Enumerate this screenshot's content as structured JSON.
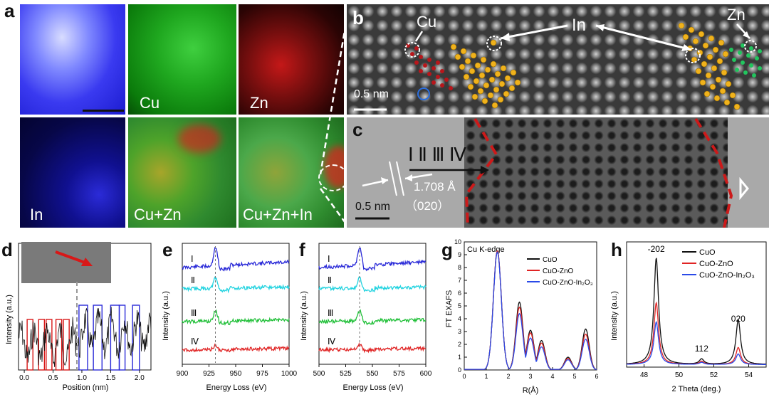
{
  "panel_a": {
    "letter": "a",
    "maps": [
      "",
      "Cu",
      "Zn",
      "In",
      "Cu+Zn",
      "Cu+Zn+In"
    ]
  },
  "panel_b": {
    "letter": "b",
    "labels": {
      "cu": "Cu",
      "in": "In",
      "zn": "Zn"
    },
    "scale": "0.5 nm"
  },
  "panel_c": {
    "letter": "c",
    "roman": "Ⅰ Ⅱ Ⅲ Ⅳ",
    "spacing": "1.708 Å",
    "plane": "（020）",
    "scale": "0.5 nm"
  },
  "panel_d": {
    "letter": "d"
  },
  "panel_e": {
    "letter": "e"
  },
  "panel_f": {
    "letter": "f"
  },
  "panel_g": {
    "letter": "g"
  },
  "panel_h": {
    "letter": "h"
  },
  "chart_data": [
    {
      "id": "d",
      "type": "line",
      "xlabel": "Position (nm)",
      "ylabel": "Intensity (a.u.)",
      "xlim": [
        -0.1,
        2.2
      ],
      "xticks": [
        0.0,
        0.5,
        1.0,
        1.5,
        2.0
      ],
      "xticklabels": [
        "0.0",
        "0.5",
        "1.0",
        "1.5",
        "2.0"
      ],
      "annotations": {
        "red_boxes_nm": [
          [
            0.05,
            0.15
          ],
          [
            0.25,
            0.35
          ],
          [
            0.38,
            0.48
          ],
          [
            0.55,
            0.65
          ],
          [
            0.68,
            0.78
          ]
        ],
        "blue_boxes_nm": [
          [
            0.95,
            1.1
          ],
          [
            1.2,
            1.35
          ],
          [
            1.5,
            1.65
          ],
          [
            1.65,
            1.75
          ],
          [
            1.88,
            2.0
          ]
        ]
      }
    },
    {
      "id": "e",
      "type": "line",
      "xlabel": "Energy Loss (eV)",
      "ylabel": "Intensity (a.u.)",
      "xlim": [
        900,
        1000
      ],
      "xticks": [
        900,
        925,
        950,
        975,
        1000
      ],
      "series_labels": [
        "Ⅰ",
        "Ⅱ",
        "Ⅲ",
        "Ⅳ"
      ],
      "series_colors": [
        "#2a2ad8",
        "#22d3e0",
        "#22c03a",
        "#e02424"
      ],
      "dashed_line_at": 931
    },
    {
      "id": "f",
      "type": "line",
      "xlabel": "Energy Loss (eV)",
      "ylabel": "Intensity (a.u.)",
      "xlim": [
        500,
        600
      ],
      "xticks": [
        500,
        525,
        550,
        575,
        600
      ],
      "series_labels": [
        "Ⅰ",
        "Ⅱ",
        "Ⅲ",
        "Ⅳ"
      ],
      "series_colors": [
        "#2a2ad8",
        "#22d3e0",
        "#22c03a",
        "#e02424"
      ],
      "dashed_line_at": 538
    },
    {
      "id": "g",
      "type": "line",
      "title": "Cu K-edge",
      "xlabel": "R(Å)",
      "ylabel": "FT EXAFS",
      "xlim": [
        0,
        6
      ],
      "ylim": [
        0,
        10
      ],
      "xticks": [
        0,
        1,
        2,
        3,
        4,
        5,
        6
      ],
      "yticks": [
        0,
        1,
        2,
        3,
        4,
        5,
        6,
        7,
        8,
        9,
        10
      ],
      "legend": [
        "CuO",
        "CuO-ZnO",
        "CuO-ZnO-In₂O₃"
      ],
      "legend_position": "top-right",
      "series": [
        {
          "name": "CuO",
          "color": "#111111",
          "peaks": [
            [
              1.5,
              9.3
            ],
            [
              2.5,
              5.3
            ],
            [
              3.0,
              3.1
            ],
            [
              3.5,
              2.3
            ],
            [
              4.7,
              1.0
            ],
            [
              5.5,
              3.2
            ]
          ]
        },
        {
          "name": "CuO-ZnO",
          "color": "#e02424",
          "peaks": [
            [
              1.5,
              9.3
            ],
            [
              2.5,
              4.9
            ],
            [
              3.0,
              2.9
            ],
            [
              3.5,
              2.1
            ],
            [
              4.7,
              0.9
            ],
            [
              5.5,
              2.8
            ]
          ]
        },
        {
          "name": "CuO-ZnO-In₂O₃",
          "color": "#2a4ae8",
          "peaks": [
            [
              1.5,
              9.2
            ],
            [
              2.5,
              4.4
            ],
            [
              3.0,
              2.5
            ],
            [
              3.5,
              1.8
            ],
            [
              4.7,
              0.8
            ],
            [
              5.5,
              2.4
            ]
          ]
        }
      ]
    },
    {
      "id": "h",
      "type": "line",
      "xlabel": "2 Theta (deg.)",
      "ylabel": "Intensity (a.u.)",
      "xlim": [
        47,
        55
      ],
      "xticks": [
        48,
        50,
        52,
        54
      ],
      "legend": [
        "CuO",
        "CuO-ZnO",
        "CuO-ZnO-In₂O₃"
      ],
      "legend_position": "top-right",
      "peak_labels": [
        [
          "-202",
          48.7
        ],
        [
          "112",
          51.3
        ],
        [
          "020",
          53.4
        ]
      ],
      "series": [
        {
          "name": "CuO",
          "color": "#111111",
          "peaks": [
            [
              48.7,
              1.0
            ],
            [
              51.3,
              0.05
            ],
            [
              53.4,
              0.42
            ]
          ]
        },
        {
          "name": "CuO-ZnO",
          "color": "#e02424",
          "peaks": [
            [
              48.7,
              0.58
            ],
            [
              51.3,
              0.03
            ],
            [
              53.4,
              0.16
            ]
          ]
        },
        {
          "name": "CuO-ZnO-In₂O₃",
          "color": "#2a4ae8",
          "peaks": [
            [
              48.7,
              0.4
            ],
            [
              51.3,
              0.02
            ],
            [
              53.4,
              0.1
            ]
          ]
        }
      ]
    }
  ]
}
